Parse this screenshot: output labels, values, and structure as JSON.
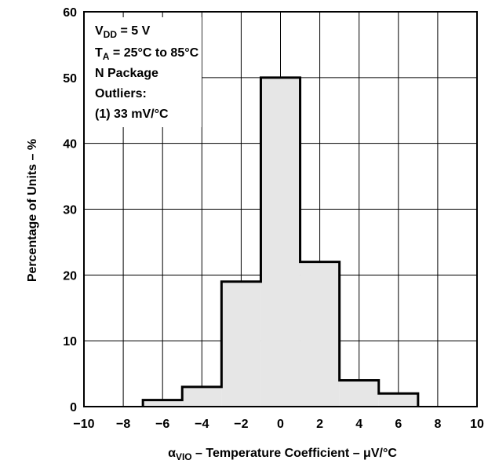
{
  "chart_data": {
    "type": "bar",
    "bin_edges": [
      -7,
      -5,
      -3,
      -1,
      1,
      3,
      5,
      7
    ],
    "values": [
      1,
      3,
      19,
      50,
      22,
      4,
      2
    ],
    "xlim": [
      -10,
      10
    ],
    "ylim": [
      0,
      60
    ],
    "x_ticks": [
      "−10",
      "−8",
      "−6",
      "−4",
      "−2",
      "0",
      "2",
      "4",
      "6",
      "8",
      "10"
    ],
    "y_ticks": [
      "0",
      "10",
      "20",
      "30",
      "40",
      "50",
      "60"
    ],
    "xlabel": {
      "symbol": "α",
      "subscript": "VIO",
      "text": " – Temperature Coefficient – μV/°C"
    },
    "ylabel": "Percentage of Units – %",
    "grid": true,
    "fill_color": "#e6e6e6",
    "annotation": {
      "line1_main": "V",
      "line1_sub": "DD",
      "line1_rest": " = 5 V",
      "line2_main": "T",
      "line2_sub": "A",
      "line2_rest": " = 25°C to 85°C",
      "line3": "N Package",
      "line4": "Outliers:",
      "line5": "(1) 33 mV/°C"
    }
  }
}
